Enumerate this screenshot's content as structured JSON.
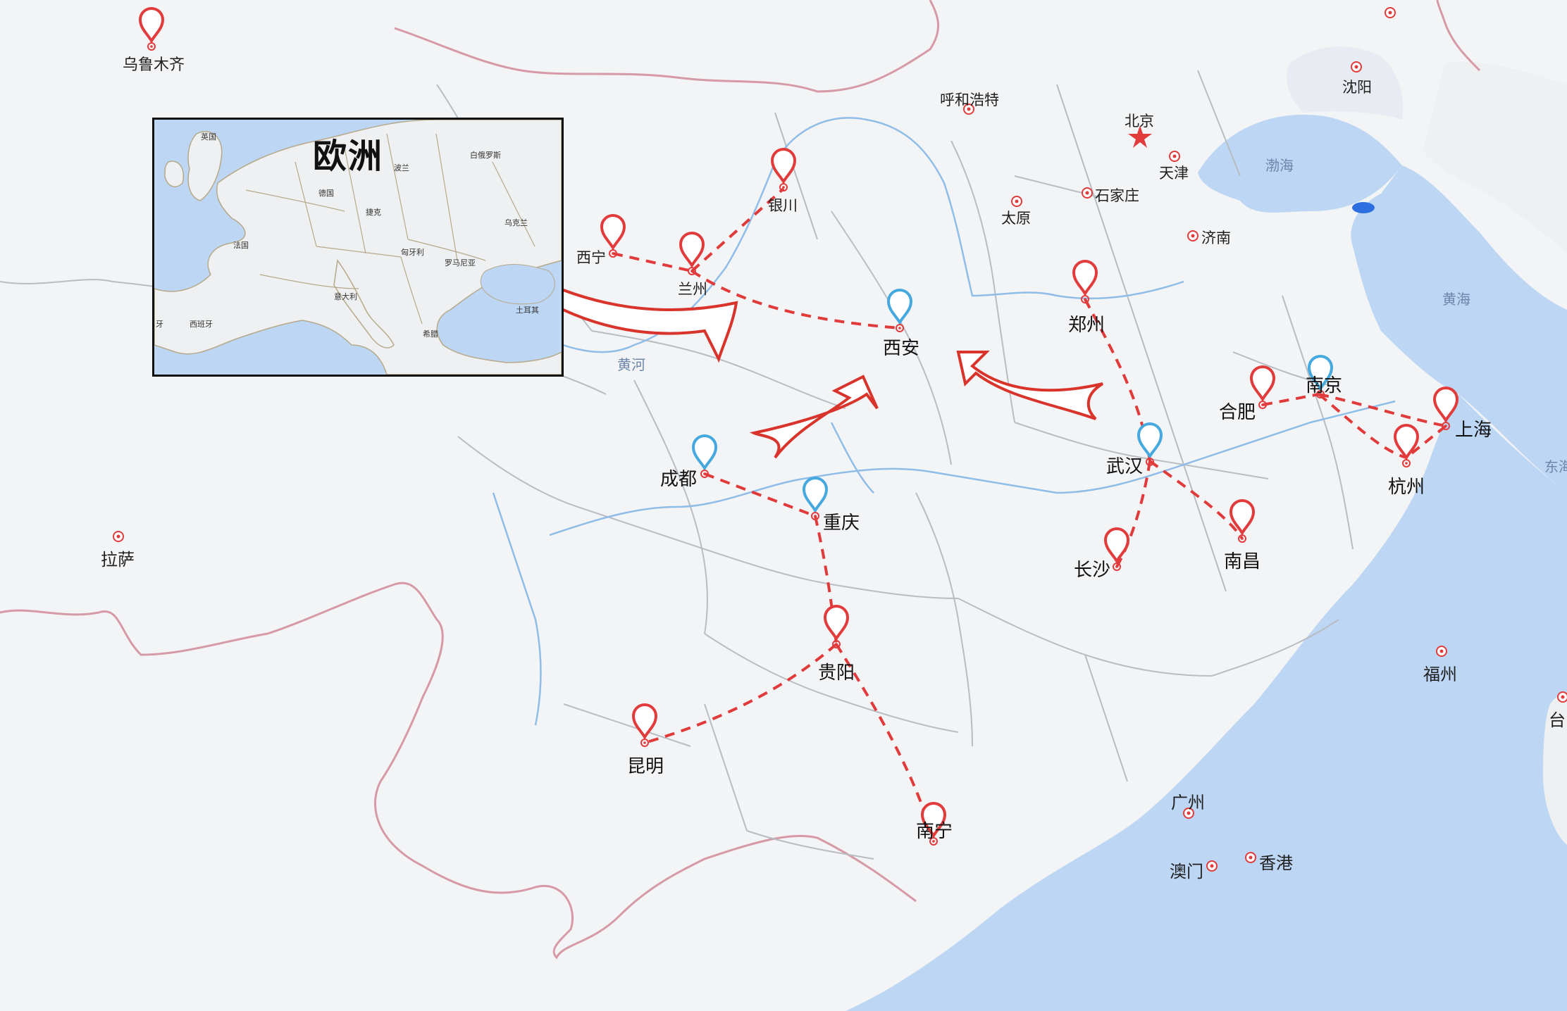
{
  "inset": {
    "title": "欧洲",
    "countries": {
      "uk": "英国",
      "poland": "波兰",
      "belarus": "白俄罗斯",
      "germany": "德国",
      "czech": "捷克",
      "ukraine": "乌克兰",
      "france": "法国",
      "hungary": "匈牙利",
      "romania": "罗马尼亚",
      "italy": "意大利",
      "spain": "西班牙",
      "portugal": "牙",
      "greece": "希腊",
      "turkey": "土耳其"
    }
  },
  "cities": {
    "urumqi": "乌鲁木齐",
    "lhasa": "拉萨",
    "hohhot": "呼和浩特",
    "beijing": "北京",
    "shenyang": "沈阳",
    "tianjin": "天津",
    "shijiazhuang": "石家庄",
    "taiyuan": "太原",
    "jinan": "济南",
    "yinchuan": "银川",
    "xining": "西宁",
    "lanzhou": "兰州",
    "xian": "西安",
    "zhengzhou": "郑州",
    "nanjing": "南京",
    "hefei": "合肥",
    "shanghai": "上海",
    "hangzhou": "杭州",
    "wuhan": "武汉",
    "changsha": "长沙",
    "nanchang": "南昌",
    "chengdu": "成都",
    "chongqing": "重庆",
    "guiyang": "贵阳",
    "kunming": "昆明",
    "nanning": "南宁",
    "guangzhou": "广州",
    "macau": "澳门",
    "hongkong": "香港",
    "fuzhou": "福州",
    "taiwan_partial": "台",
    "east_sea_partial": "东海"
  },
  "water": {
    "bohai": "渤海",
    "yellow_sea": "黄海",
    "yellow_river": "黄河"
  },
  "colors": {
    "route": "#e03a3a",
    "red_pin": "#e23b3b",
    "blue_pin": "#45a8de",
    "arrow": "#d8342c",
    "sea": "#bcd6f3",
    "border_intl": "#d69aa6",
    "border_prov": "#b9bdc3",
    "river": "#8fbde8"
  }
}
